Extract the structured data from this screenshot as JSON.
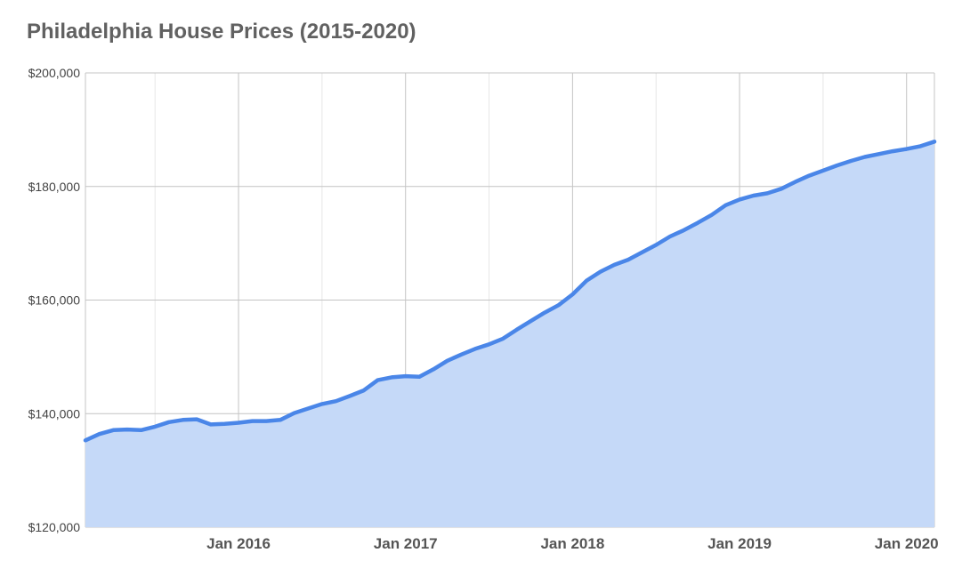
{
  "chart_data": {
    "type": "area",
    "title": "Philadelphia House Prices (2015-2020)",
    "xlabel": "",
    "ylabel": "",
    "ylim": [
      120000,
      200000
    ],
    "xlim": [
      "2015-02",
      "2020-03"
    ],
    "y_ticks": [
      120000,
      140000,
      160000,
      180000,
      200000
    ],
    "y_tick_labels": [
      "$120,000",
      "$140,000",
      "$160,000",
      "$180,000",
      "$200,000"
    ],
    "x_tick_labels": [
      {
        "date": "2016-01",
        "label": "Jan 2016"
      },
      {
        "date": "2017-01",
        "label": "Jan 2017"
      },
      {
        "date": "2018-01",
        "label": "Jan 2018"
      },
      {
        "date": "2019-01",
        "label": "Jan 2019"
      },
      {
        "date": "2020-01",
        "label": "Jan 2020"
      }
    ],
    "minor_gridline_dates": [
      "2015-07",
      "2016-07",
      "2017-07",
      "2018-07",
      "2019-07"
    ],
    "grid": true,
    "colors": {
      "line": "#4a86e8",
      "fill": "#c5d9f8",
      "major_grid": "#c4c4c4",
      "minor_grid": "#e6e6e6"
    },
    "x": [
      "2015-02",
      "2015-03",
      "2015-04",
      "2015-05",
      "2015-06",
      "2015-07",
      "2015-08",
      "2015-09",
      "2015-10",
      "2015-11",
      "2015-12",
      "2016-01",
      "2016-02",
      "2016-03",
      "2016-04",
      "2016-05",
      "2016-06",
      "2016-07",
      "2016-08",
      "2016-09",
      "2016-10",
      "2016-11",
      "2016-12",
      "2017-01",
      "2017-02",
      "2017-03",
      "2017-04",
      "2017-05",
      "2017-06",
      "2017-07",
      "2017-08",
      "2017-09",
      "2017-10",
      "2017-11",
      "2017-12",
      "2018-01",
      "2018-02",
      "2018-03",
      "2018-04",
      "2018-05",
      "2018-06",
      "2018-07",
      "2018-08",
      "2018-09",
      "2018-10",
      "2018-11",
      "2018-12",
      "2019-01",
      "2019-02",
      "2019-03",
      "2019-04",
      "2019-05",
      "2019-06",
      "2019-07",
      "2019-08",
      "2019-09",
      "2019-10",
      "2019-11",
      "2019-12",
      "2020-01",
      "2020-02",
      "2020-03"
    ],
    "series": [
      {
        "values": [
          135300,
          136400,
          137100,
          137200,
          137100,
          137700,
          138500,
          138900,
          139000,
          138100,
          138200,
          138400,
          138700,
          138700,
          138900,
          140100,
          140900,
          141700,
          142200,
          143100,
          144100,
          145900,
          146400,
          146600,
          146500,
          147800,
          149300,
          150400,
          151400,
          152200,
          153200,
          154800,
          156300,
          157800,
          159100,
          161000,
          163400,
          165000,
          166200,
          167100,
          168400,
          169700,
          171200,
          172300,
          173600,
          175000,
          176700,
          177700,
          178400,
          178800,
          179600,
          180800,
          181900,
          182800,
          183700,
          184500,
          185200,
          185700,
          186200,
          186600,
          187100,
          187900
        ]
      }
    ]
  }
}
